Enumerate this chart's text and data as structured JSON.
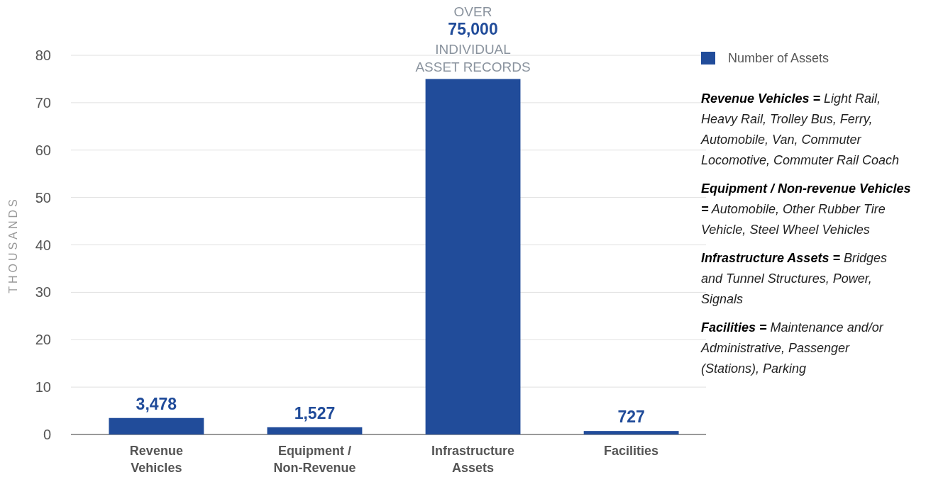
{
  "chart_data": {
    "type": "bar",
    "categories": [
      "Revenue Vehicles",
      "Equipment / Non-Revenue",
      "Infrastructure Assets",
      "Facilities"
    ],
    "series": [
      {
        "name": "Number of Assets",
        "color": "#214c9a",
        "values": [
          3.478,
          1.527,
          75,
          0.727
        ]
      }
    ],
    "value_labels": [
      "3,478",
      "1,527",
      "75,000",
      "727"
    ],
    "ylabel": "THOUSANDS",
    "ylim": [
      0,
      80
    ],
    "yticks": [
      0,
      10,
      20,
      30,
      40,
      50,
      60,
      70,
      80
    ],
    "grid": "y",
    "legend": "top right",
    "annotations": [
      "OVER",
      {
        "text": "INDIVIDUAL ASSET RECORDS",
        "x": "Infrastructure Assets",
        "y": 75
      },
      "Revenue Vehicles = Light Rail, Heavy Rail, Trolley Bus, Ferry, Automobile, Van, Commuter Locomotive, Commuter Rail Coach",
      "Equipment / Non-revenue Vehicles = Automobile, Other Rubber Tire Vehicle, Steel Wheel Vehicles",
      "Infrastructure Assets = Bridges and Tunnel Structures, Power, Signals",
      "Facilities = Maintenance and/or Administrative, Passenger (Stations), Parking"
    ]
  }
}
